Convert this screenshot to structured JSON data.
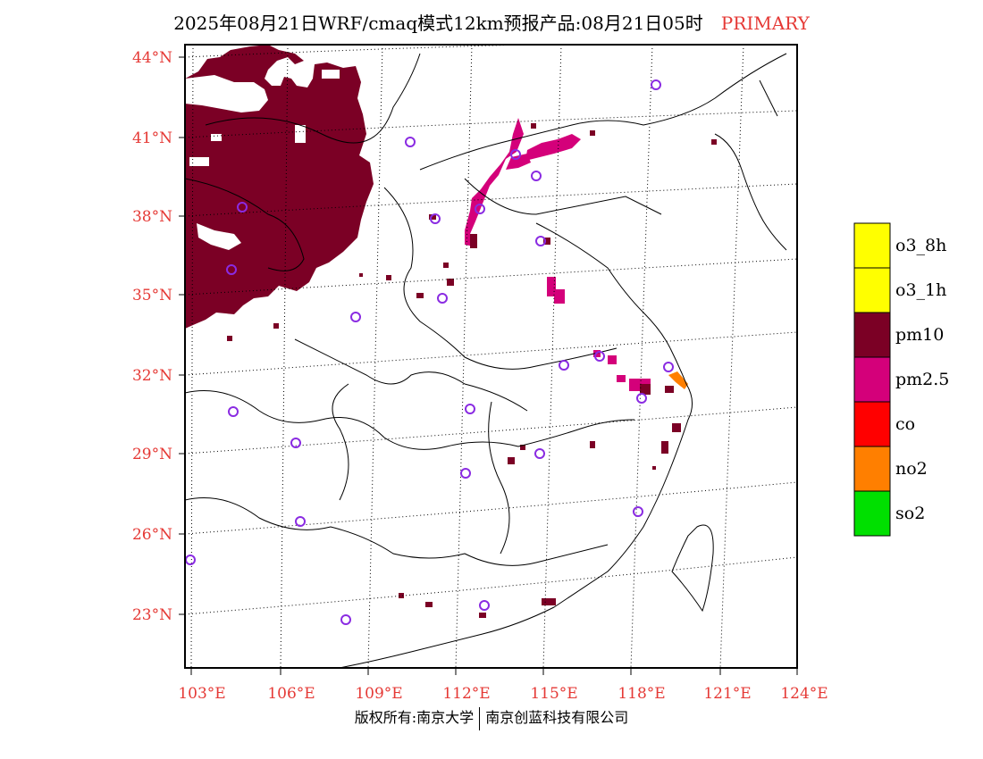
{
  "title": {
    "main": "2025年08月21日WRF/cmaq模式12km预报产品:08月21日05时",
    "tag": "PRIMARY"
  },
  "axes": {
    "lat_labels": [
      "44°N",
      "41°N",
      "38°N",
      "35°N",
      "32°N",
      "29°N",
      "26°N",
      "23°N"
    ],
    "lon_labels": [
      "103°E",
      "106°E",
      "109°E",
      "112°E",
      "115°E",
      "118°E",
      "121°E",
      "124°E"
    ]
  },
  "legend": {
    "items": [
      {
        "label": "o3_8h",
        "color": "#ffff00"
      },
      {
        "label": "o3_1h",
        "color": "#ffff00"
      },
      {
        "label": "pm10",
        "color": "#7b0025"
      },
      {
        "label": "pm2.5",
        "color": "#d4007a"
      },
      {
        "label": "co",
        "color": "#ff0000"
      },
      {
        "label": "no2",
        "color": "#ff7f00"
      },
      {
        "label": "so2",
        "color": "#00e000"
      }
    ]
  },
  "footer": {
    "left": "版权所有:南京大学",
    "right": "南京创蓝科技有限公司"
  },
  "colors": {
    "pm10": "#7b0025",
    "pm25": "#d4007a",
    "no2": "#ff7f00",
    "station_marker": "#8a2be2",
    "tick_text": "#e53935"
  }
}
